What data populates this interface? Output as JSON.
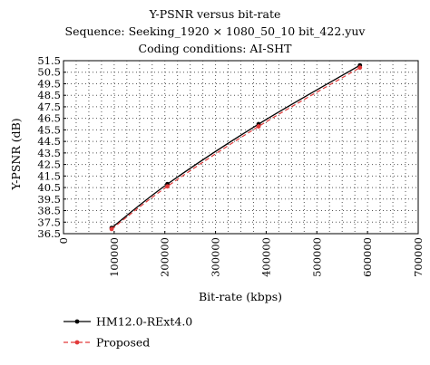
{
  "chart_data": {
    "type": "line",
    "title": "Y-PSNR versus bit-rate",
    "subtitle_lines": [
      "Sequence: Seeking_1920 × 1080_50_10 bit_422.yuv",
      "Coding conditions: AI-SHT"
    ],
    "xlabel": "Bit-rate (kbps)",
    "ylabel": "Y-PSNR (dB)",
    "xlim": [
      0,
      700000
    ],
    "ylim": [
      36.5,
      51.5
    ],
    "x_ticks": [
      "0",
      "100000",
      "200000",
      "300000",
      "400000",
      "500000",
      "600000",
      "700000"
    ],
    "y_ticks": [
      "36.5",
      "37.5",
      "38.5",
      "39.5",
      "40.5",
      "41.5",
      "42.5",
      "43.5",
      "44.5",
      "45.5",
      "46.5",
      "47.5",
      "48.5",
      "49.5",
      "50.5",
      "51.5"
    ],
    "grid": true,
    "legend_position": "bottom",
    "series": [
      {
        "name": "HM12.0-RExt4.0",
        "color": "#000000",
        "style": "solid",
        "marker": "dot",
        "x": [
          95000,
          205000,
          385000,
          585000
        ],
        "y": [
          37.0,
          40.8,
          46.0,
          51.1
        ]
      },
      {
        "name": "Proposed",
        "color": "#e23a3a",
        "style": "dashed",
        "marker": "dot",
        "x": [
          95000,
          205000,
          385000,
          585000
        ],
        "y": [
          36.9,
          40.6,
          45.8,
          50.9
        ]
      }
    ]
  }
}
